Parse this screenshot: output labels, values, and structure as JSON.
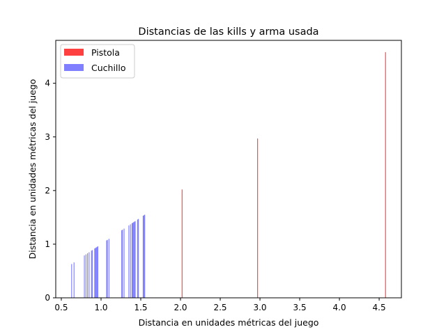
{
  "chart_data": {
    "type": "bar",
    "title": "Distancias de las kills y arma usada",
    "xlabel": "Distancia en unidades métricas del juego",
    "ylabel": "Distancia en unidades métricas del juego",
    "xlim": [
      0.43,
      4.78
    ],
    "ylim": [
      0,
      4.8
    ],
    "xticks": [
      "0.5",
      "1.0",
      "1.5",
      "2.0",
      "2.5",
      "3.0",
      "3.5",
      "4.0",
      "4.5"
    ],
    "yticks": [
      "0",
      "1",
      "2",
      "3",
      "4"
    ],
    "grid": false,
    "legend_position": "top-left",
    "bar_width": 0.01,
    "series": [
      {
        "name": "Pistola",
        "color": "#ff0000",
        "alpha": 0.75,
        "x": [
          2.02,
          2.97,
          4.58
        ],
        "values": [
          2.02,
          2.97,
          4.58
        ]
      },
      {
        "name": "Cuchillo",
        "color": "#0000ff",
        "alpha": 0.5,
        "x": [
          0.63,
          0.66,
          0.79,
          0.81,
          0.83,
          0.85,
          0.88,
          0.89,
          0.92,
          0.93,
          0.94,
          0.95,
          0.96,
          1.07,
          1.08,
          1.1,
          1.26,
          1.27,
          1.29,
          1.35,
          1.37,
          1.39,
          1.4,
          1.41,
          1.42,
          1.43,
          1.46,
          1.47,
          1.53,
          1.54,
          1.55
        ],
        "values": [
          0.63,
          0.66,
          0.79,
          0.81,
          0.83,
          0.85,
          0.88,
          0.89,
          0.92,
          0.93,
          0.94,
          0.95,
          0.96,
          1.07,
          1.08,
          1.1,
          1.26,
          1.27,
          1.29,
          1.35,
          1.37,
          1.39,
          1.4,
          1.41,
          1.42,
          1.43,
          1.46,
          1.47,
          1.53,
          1.54,
          1.55
        ]
      }
    ]
  }
}
